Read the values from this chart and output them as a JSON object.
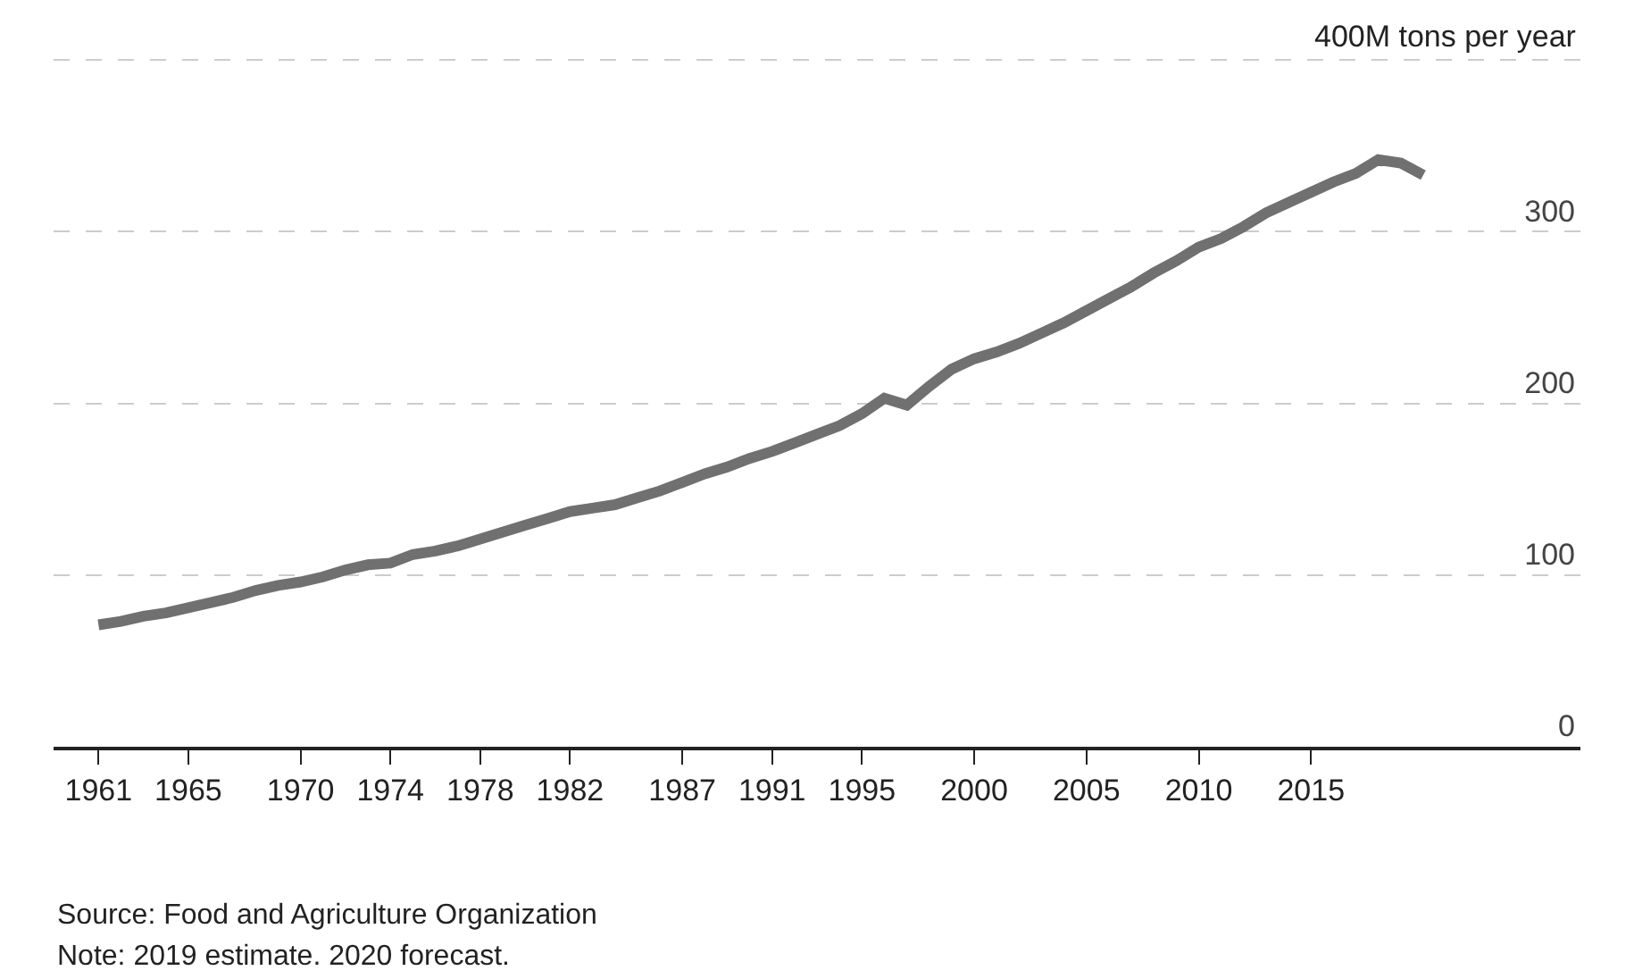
{
  "chart_data": {
    "type": "line",
    "ylabel": "400M tons per year",
    "x": [
      1961,
      1962,
      1963,
      1964,
      1965,
      1966,
      1967,
      1968,
      1969,
      1970,
      1971,
      1972,
      1973,
      1974,
      1975,
      1976,
      1977,
      1978,
      1979,
      1980,
      1981,
      1982,
      1983,
      1984,
      1985,
      1986,
      1987,
      1988,
      1989,
      1990,
      1991,
      1992,
      1993,
      1994,
      1995,
      1996,
      1997,
      1998,
      1999,
      2000,
      2001,
      2002,
      2003,
      2004,
      2005,
      2006,
      2007,
      2008,
      2009,
      2010,
      2011,
      2012,
      2013,
      2014,
      2015,
      2016,
      2017,
      2018,
      2019,
      2020
    ],
    "series": [
      {
        "color": "#707070",
        "values": [
          71,
          73,
          76,
          78,
          81,
          84,
          87,
          91,
          94,
          96,
          99,
          103,
          106,
          107,
          112,
          114,
          117,
          121,
          125,
          129,
          133,
          137,
          139,
          141,
          145,
          149,
          154,
          159,
          163,
          168,
          172,
          177,
          182,
          187,
          194,
          203,
          199,
          210,
          220,
          226,
          230,
          235,
          241,
          247,
          254,
          261,
          268,
          276,
          283,
          291,
          296,
          303,
          311,
          317,
          323,
          329,
          334,
          342,
          340,
          333
        ]
      }
    ],
    "xlim": [
      1959,
      2027
    ],
    "xticks": [
      1961,
      1965,
      1970,
      1974,
      1978,
      1982,
      1987,
      1991,
      1995,
      2000,
      2005,
      2010,
      2015
    ],
    "ylim": [
      0,
      435
    ],
    "yticks": [
      0,
      100,
      200,
      300,
      {
        "value": 400,
        "label": null
      }
    ],
    "grid": "y",
    "marker": "none",
    "line_style": "solid",
    "annotations": [
      "Source: Food and Agriculture Organization",
      "Note: 2019 estimate. 2020 forecast."
    ]
  }
}
